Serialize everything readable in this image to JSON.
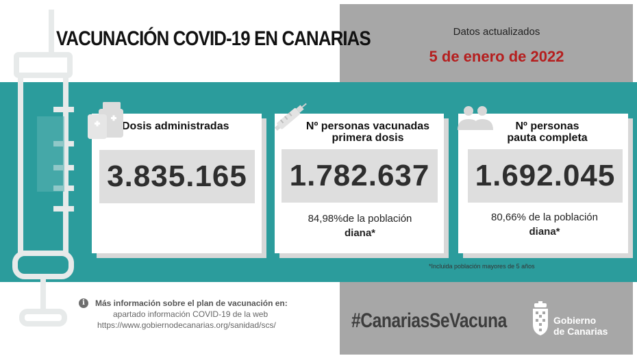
{
  "title": "VACUNACIÓN COVID-19 EN CANARIAS",
  "updated": {
    "label": "Datos actualizados",
    "date": "5 de enero de 2022"
  },
  "cards": [
    {
      "title": "Dosis administradas",
      "value": "3.835.165",
      "icon": "medical-kit-icon"
    },
    {
      "title_line1": "Nº personas vacunadas",
      "title_line2": "primera dosis",
      "value": "1.782.637",
      "pct_line1": "84,98%de la población",
      "pct_line2": "diana*",
      "icon": "syringe-icon"
    },
    {
      "title_line1": "Nº personas",
      "title_line2": "pauta completa",
      "value": "1.692.045",
      "pct_line1": "80,66% de la población",
      "pct_line2": "diana*",
      "icon": "people-icon"
    }
  ],
  "footnote": "*Incluida población mayores de 5 años",
  "info": {
    "heading": "Más información sobre el plan de vacunación en:",
    "line1": "apartado información COVID-19 de la web",
    "line2": "https://www.gobiernodecanarias.org/sanidad/scs/"
  },
  "hashtag": "#CanariasSeVacuna",
  "gov": {
    "line1": "Gobierno",
    "line2": "de Canarias"
  },
  "colors": {
    "teal": "#2b9c9c",
    "gray_panel": "#a7a7a7",
    "date_red": "#b51e1e"
  }
}
